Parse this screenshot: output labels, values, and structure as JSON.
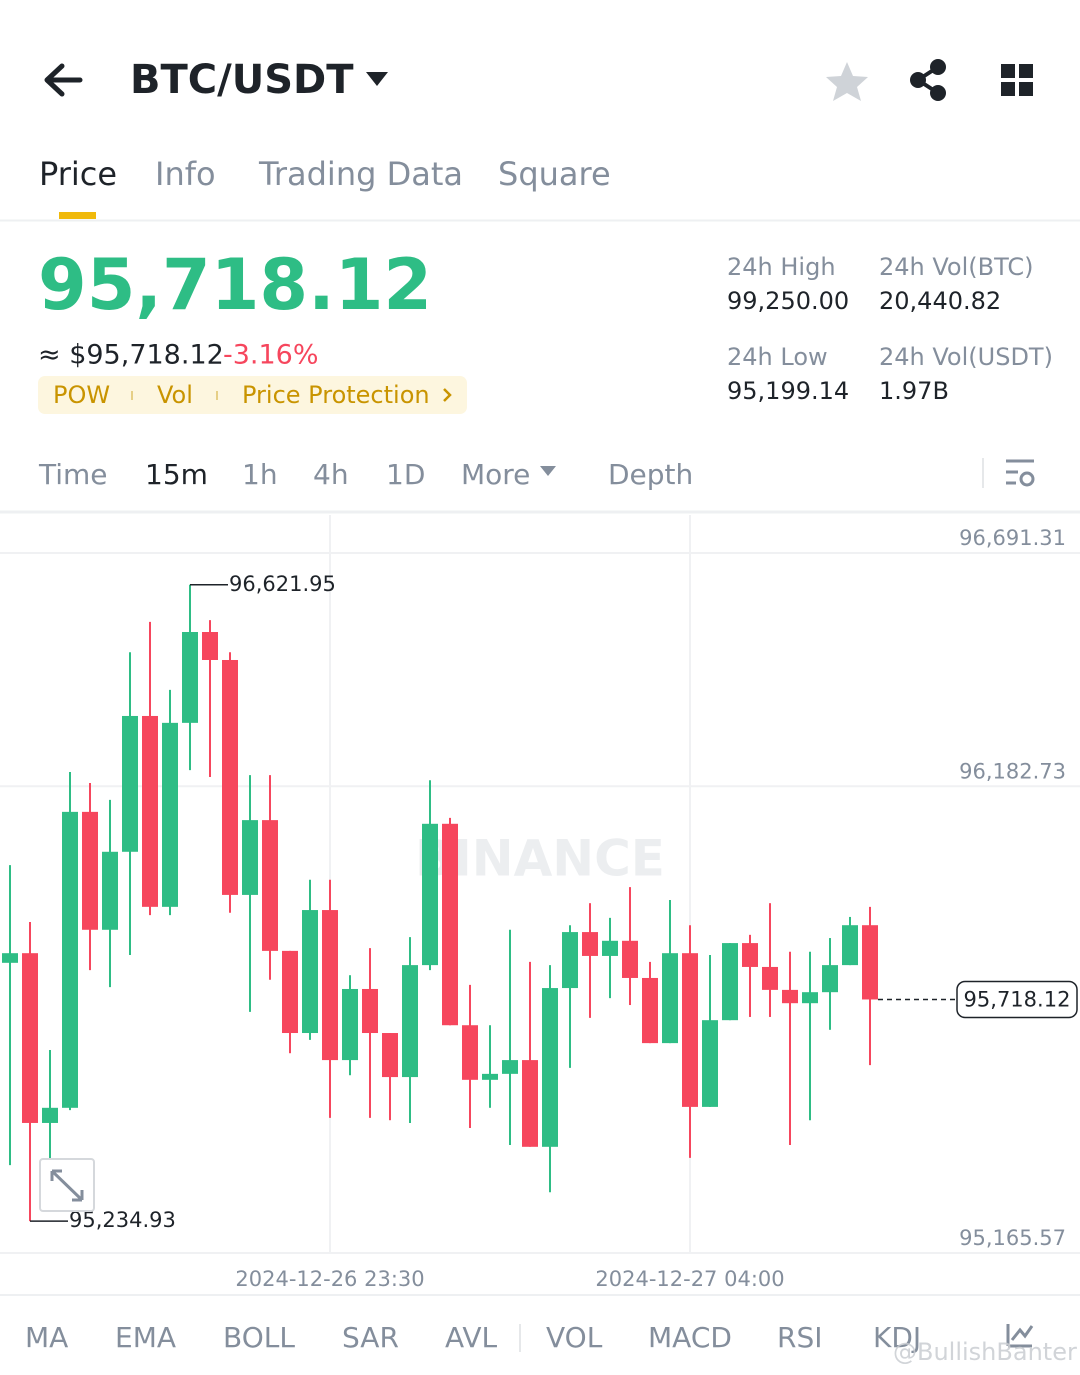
{
  "header": {
    "pair": "BTC/USDT"
  },
  "tabs": [
    "Price",
    "Info",
    "Trading Data",
    "Square"
  ],
  "price": {
    "last": "95,718.12",
    "usd": "≈ $95,718.12",
    "change": "-3.16%",
    "tags": [
      "POW",
      "Vol",
      "Price Protection"
    ]
  },
  "stats": [
    {
      "label": "24h High",
      "value": "99,250.00"
    },
    {
      "label": "24h Vol(BTC)",
      "value": "20,440.82"
    },
    {
      "label": "24h Low",
      "value": "95,199.14"
    },
    {
      "label": "24h Vol(USDT)",
      "value": "1.97B"
    }
  ],
  "intervals": [
    "Time",
    "15m",
    "1h",
    "4h",
    "1D",
    "More",
    "Depth"
  ],
  "chart_data": {
    "type": "candlestick",
    "watermark": "BINANCE",
    "categories": [
      null,
      null,
      null,
      null,
      null,
      null,
      null,
      null,
      null,
      null,
      null,
      null,
      null,
      null,
      null,
      null,
      "2024-12-26 23:30",
      null,
      null,
      null,
      null,
      null,
      null,
      null,
      null,
      null,
      null,
      null,
      null,
      null,
      null,
      null,
      null,
      null,
      "2024-12-27 04:00",
      null,
      null,
      null,
      null,
      null,
      null,
      null,
      null,
      null
    ],
    "open": [
      95798,
      95819,
      95449,
      95482,
      96127,
      95870,
      96040,
      96336,
      95920,
      96321,
      96519,
      96458,
      95946,
      96109,
      95824,
      95645,
      95913,
      95586,
      95741,
      95645,
      95549,
      95793,
      96101,
      95662,
      95543,
      95556,
      95586,
      95397,
      95743,
      95865,
      95813,
      95846,
      95765,
      95623,
      95819,
      95484,
      95673,
      95841,
      95789,
      95739,
      95710,
      95734,
      95793,
      95880
    ],
    "high": [
      96011,
      95887,
      95608,
      96214,
      96190,
      96153,
      96475,
      96541,
      96393,
      96621.95,
      96545,
      96475,
      96207,
      96207,
      95824,
      95979,
      95979,
      95771,
      95830,
      95645,
      95854,
      96196,
      96114,
      95750,
      95662,
      95870,
      95800,
      95793,
      95880,
      95928,
      95896,
      95963,
      95800,
      95935,
      95880,
      95815,
      95841,
      95859,
      95928,
      95822,
      95822,
      95852,
      95898,
      95920
    ],
    "low": [
      95357,
      95234.93,
      95368,
      95477,
      95782,
      95745,
      95815,
      95902,
      95902,
      96218,
      96203,
      95907,
      95691,
      95761,
      95601,
      95630,
      95460,
      95553,
      95460,
      95455,
      95449,
      95782,
      95662,
      95438,
      95482,
      95401,
      95397,
      95298,
      95569,
      95678,
      95721,
      95706,
      95623,
      95623,
      95373,
      95484,
      95673,
      95680,
      95680,
      95401,
      95455,
      95652,
      95793,
      95575
    ],
    "close": [
      95819,
      95449,
      95482,
      96127,
      95870,
      96040,
      96336,
      95920,
      96321,
      96519,
      96458,
      95946,
      96109,
      95824,
      95645,
      95913,
      95586,
      95741,
      95645,
      95549,
      95793,
      96101,
      95662,
      95543,
      95556,
      95586,
      95397,
      95743,
      95865,
      95813,
      95846,
      95765,
      95623,
      95819,
      95484,
      95673,
      95841,
      95789,
      95739,
      95710,
      95734,
      95793,
      95880,
      95718.12
    ],
    "up_color": "#2ebd85",
    "down_color": "#f6465d",
    "ylim": [
      95165.57,
      96774
    ],
    "yticks": [
      {
        "value": 95165.57,
        "label": "95,165.57"
      },
      {
        "value": 96182.73,
        "label": "96,182.73"
      },
      {
        "value": 96691.31,
        "label": "96,691.31"
      }
    ],
    "grid": true,
    "annotations": {
      "high": {
        "value": 96621.95,
        "label": "96,621.95"
      },
      "low": {
        "value": 95234.93,
        "label": "95,234.93"
      },
      "last": {
        "value": 95718.12,
        "label": "95,718.12"
      }
    }
  },
  "indicators": [
    "MA",
    "EMA",
    "BOLL",
    "SAR",
    "AVL",
    "VOL",
    "MACD",
    "RSI",
    "KDJ"
  ],
  "watermark": "@BullishBanter"
}
